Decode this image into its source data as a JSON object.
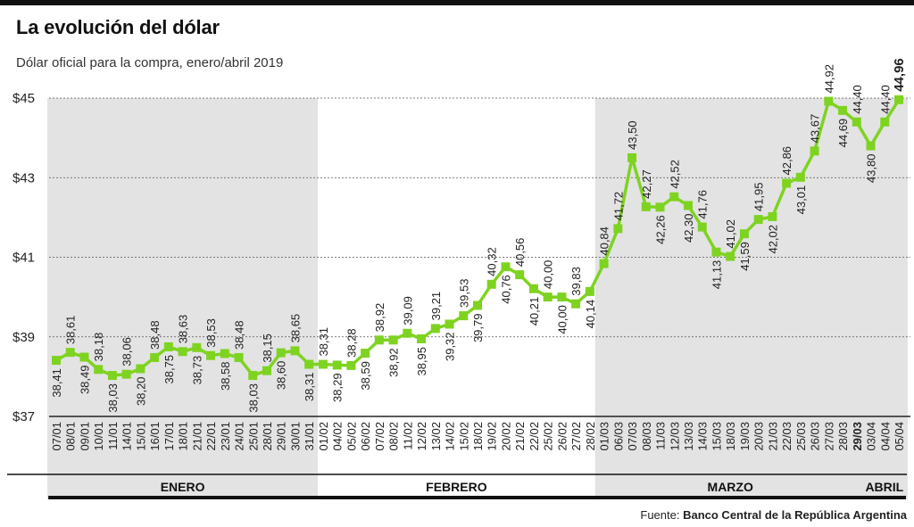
{
  "title": "La evolución del dólar",
  "subtitle": "Dólar oficial para la compra, enero/abril 2019",
  "source_prefix": "Fuente: ",
  "source_name": "Banco Central de la República Argentina",
  "colors": {
    "line": "#7ed321",
    "shade": "#e3e3e3",
    "text": "#222222",
    "accent_bar": "#111111"
  },
  "chart_data": {
    "type": "line",
    "ylim": [
      37,
      45
    ],
    "yticks": [
      "$37",
      "$39",
      "$41",
      "$43",
      "$45"
    ],
    "ytick_values": [
      37,
      39,
      41,
      43,
      45
    ],
    "x": [
      "07/01",
      "08/01",
      "09/01",
      "10/01",
      "11/01",
      "14/01",
      "15/01",
      "16/01",
      "17/01",
      "18/01",
      "21/01",
      "22/01",
      "23/01",
      "24/01",
      "25/01",
      "28/01",
      "29/01",
      "30/01",
      "31/01",
      "01/02",
      "04/02",
      "05/02",
      "06/02",
      "07/02",
      "08/02",
      "11/02",
      "12/02",
      "13/02",
      "14/02",
      "15/02",
      "18/02",
      "19/02",
      "20/02",
      "21/02",
      "22/02",
      "25/02",
      "26/02",
      "27/02",
      "28/02",
      "01/03",
      "06/03",
      "07/03",
      "08/03",
      "11/03",
      "12/03",
      "13/03",
      "14/03",
      "15/03",
      "18/03",
      "19/03",
      "20/03",
      "21/03",
      "22/03",
      "25/03",
      "26/03",
      "27/03",
      "28/03",
      "29/03",
      "03/04",
      "04/04",
      "05/04"
    ],
    "values": [
      38.41,
      38.61,
      38.49,
      38.18,
      38.03,
      38.06,
      38.2,
      38.48,
      38.75,
      38.63,
      38.73,
      38.53,
      38.58,
      38.48,
      38.03,
      38.15,
      38.6,
      38.65,
      38.31,
      38.31,
      38.29,
      38.28,
      38.59,
      38.92,
      38.92,
      39.09,
      38.95,
      39.21,
      39.32,
      39.53,
      39.79,
      40.32,
      40.76,
      40.56,
      40.21,
      40.0,
      40.0,
      39.83,
      40.14,
      40.84,
      41.72,
      43.5,
      42.27,
      42.26,
      42.52,
      42.3,
      41.76,
      41.13,
      41.02,
      41.59,
      41.95,
      42.02,
      42.86,
      43.01,
      43.67,
      44.92,
      44.69,
      44.4,
      43.8,
      44.4,
      44.96
    ],
    "labels": [
      "38,41",
      "38,61",
      "38,49",
      "38,18",
      "38,03",
      "38,06",
      "38,20",
      "38,48",
      "38,75",
      "38,63",
      "38,73",
      "38,53",
      "38,58",
      "38,48",
      "38,03",
      "38,15",
      "38,60",
      "38,65",
      "38,31",
      "38,31",
      "38,29",
      "38,28",
      "38,59",
      "38,92",
      "38,92",
      "39,09",
      "38,95",
      "39,21",
      "39,32",
      "39,53",
      "39,79",
      "40,32",
      "40,76",
      "40,56",
      "40,21",
      "40,00",
      "40,00",
      "39,83",
      "40,14",
      "40,84",
      "41,72",
      "43,50",
      "42,27",
      "42,26",
      "42,52",
      "42,30",
      "41,76",
      "41,13",
      "41,02",
      "41,59",
      "41,95",
      "42,02",
      "42,86",
      "43,01",
      "43,67",
      "44,92",
      "44,69",
      "44,40",
      "43,80",
      "44,40",
      "44,96"
    ],
    "label_positions": [
      "below",
      "above",
      "below",
      "above",
      "below",
      "above",
      "below",
      "above",
      "below",
      "above",
      "below",
      "above",
      "below",
      "above",
      "below",
      "above",
      "below",
      "above",
      "below",
      "above",
      "below",
      "above",
      "below",
      "above",
      "below",
      "above",
      "below",
      "above",
      "below",
      "above",
      "below",
      "above",
      "below",
      "above",
      "below",
      "above",
      "below",
      "above",
      "below",
      "above",
      "above",
      "above",
      "above",
      "below",
      "above",
      "below",
      "above",
      "below",
      "above",
      "below",
      "above",
      "below",
      "above",
      "below",
      "above",
      "above",
      "below",
      "above",
      "below",
      "above",
      "above"
    ],
    "bold_x": [
      "29/03"
    ],
    "bold_labels": [
      "44,96"
    ],
    "months": [
      {
        "name": "ENERO",
        "start": 0,
        "end": 18,
        "shaded": true
      },
      {
        "name": "FEBRERO",
        "start": 19,
        "end": 38,
        "shaded": false
      },
      {
        "name": "MARZO",
        "start": 39,
        "end": 57,
        "shaded": true
      },
      {
        "name": "ABRIL",
        "start": 58,
        "end": 60,
        "shaded": true
      }
    ]
  }
}
